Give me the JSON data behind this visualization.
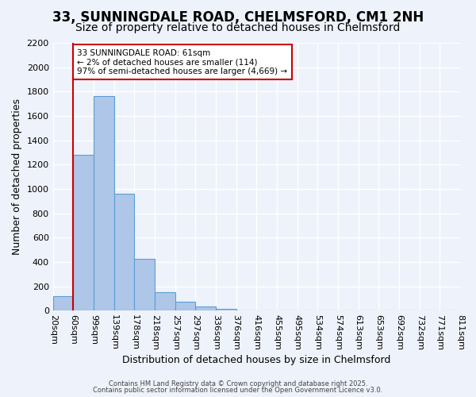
{
  "title": "33, SUNNINGDALE ROAD, CHELMSFORD, CM1 2NH",
  "subtitle": "Size of property relative to detached houses in Chelmsford",
  "xlabel": "Distribution of detached houses by size in Chelmsford",
  "ylabel": "Number of detached properties",
  "bin_edges": [
    "20sqm",
    "60sqm",
    "99sqm",
    "139sqm",
    "178sqm",
    "218sqm",
    "257sqm",
    "297sqm",
    "336sqm",
    "376sqm",
    "416sqm",
    "455sqm",
    "495sqm",
    "534sqm",
    "574sqm",
    "613sqm",
    "653sqm",
    "692sqm",
    "732sqm",
    "771sqm",
    "811sqm"
  ],
  "bar_values": [
    120,
    1280,
    1760,
    960,
    430,
    150,
    75,
    35,
    15,
    0,
    0,
    0,
    0,
    0,
    0,
    0,
    0,
    0,
    0,
    0
  ],
  "bar_color": "#aec6e8",
  "bar_edge_color": "#5a9ed6",
  "vline_x": 1,
  "vline_color": "#cc0000",
  "ylim": [
    0,
    2200
  ],
  "yticks": [
    0,
    200,
    400,
    600,
    800,
    1000,
    1200,
    1400,
    1600,
    1800,
    2000,
    2200
  ],
  "annotation_text": "33 SUNNINGDALE ROAD: 61sqm\n← 2% of detached houses are smaller (114)\n97% of semi-detached houses are larger (4,669) →",
  "annotation_box_color": "#ffffff",
  "annotation_box_edge": "#cc0000",
  "footer1": "Contains HM Land Registry data © Crown copyright and database right 2025.",
  "footer2": "Contains public sector information licensed under the Open Government Licence v3.0.",
  "bg_color": "#eef2fa",
  "plot_bg_color": "#eef2fa",
  "grid_color": "#ffffff",
  "title_fontsize": 12,
  "subtitle_fontsize": 10,
  "axis_fontsize": 9,
  "tick_fontsize": 8
}
